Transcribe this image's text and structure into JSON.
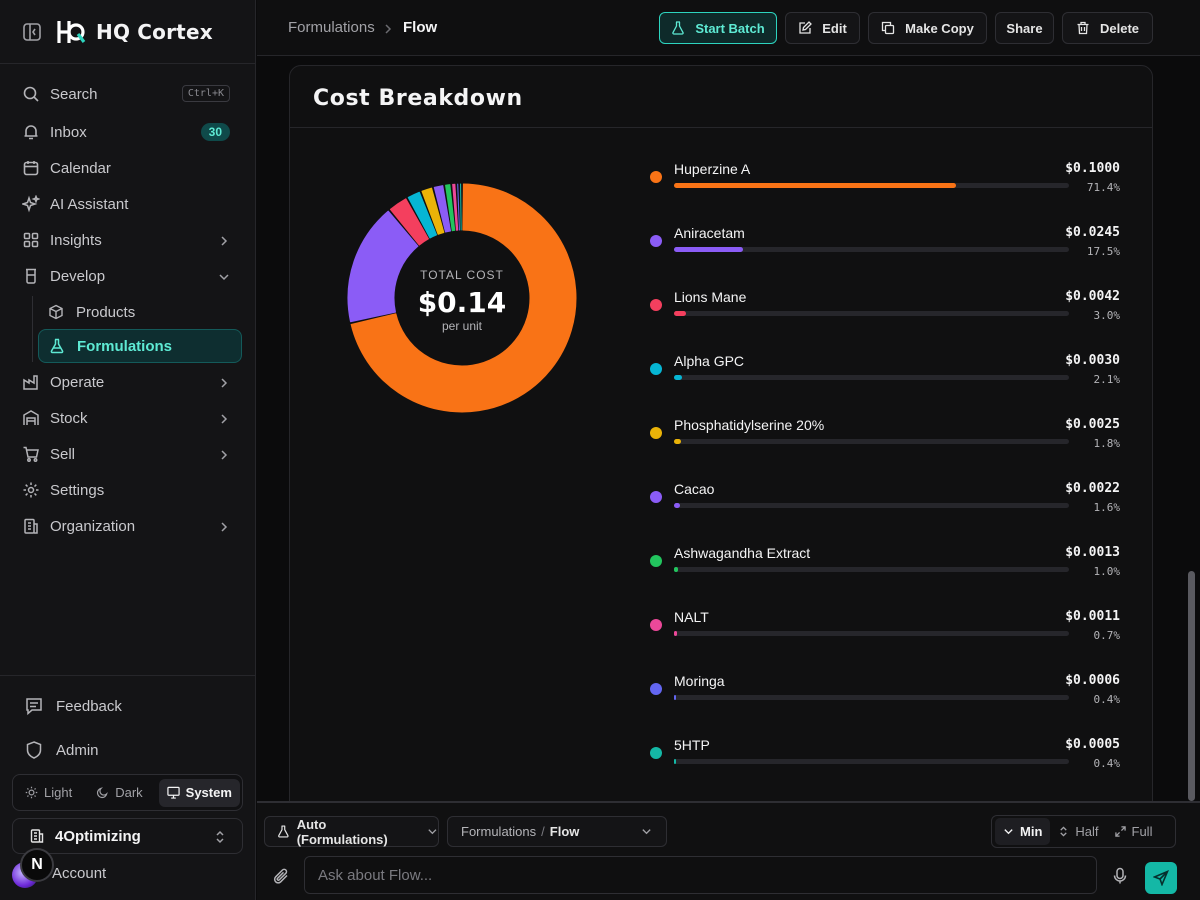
{
  "brand": {
    "name": "HQ Cortex"
  },
  "nav": {
    "search": {
      "label": "Search",
      "shortcut": "Ctrl+K"
    },
    "inbox": {
      "label": "Inbox",
      "count": "30"
    },
    "calendar": "Calendar",
    "ai_assistant": "AI Assistant",
    "insights": "Insights",
    "develop": "Develop",
    "develop_items": {
      "products": "Products",
      "formulations": "Formulations"
    },
    "operate": "Operate",
    "stock": "Stock",
    "sell": "Sell",
    "settings": "Settings",
    "organization": "Organization"
  },
  "sidebar_bottom": {
    "feedback": "Feedback",
    "admin": "Admin",
    "theme": {
      "light": "Light",
      "dark": "Dark",
      "system": "System",
      "selected": "System"
    },
    "org": "4Optimizing",
    "account": "Account",
    "account_badge": "N"
  },
  "header": {
    "breadcrumb_root": "Formulations",
    "breadcrumb_current": "Flow",
    "buttons": {
      "start_batch": "Start Batch",
      "edit": "Edit",
      "make_copy": "Make Copy",
      "share": "Share",
      "delete": "Delete"
    }
  },
  "cost_breakdown": {
    "title": "Cost Breakdown",
    "total_label": "TOTAL COST",
    "total_value": "$0.14",
    "total_unit": "per unit",
    "items": [
      {
        "name": "Huperzine A",
        "amount": "$0.1000",
        "percent": "71.4%",
        "share": 71.4,
        "color": "#f97316"
      },
      {
        "name": "Aniracetam",
        "amount": "$0.0245",
        "percent": "17.5%",
        "share": 17.5,
        "color": "#8b5cf6"
      },
      {
        "name": "Lions Mane",
        "amount": "$0.0042",
        "percent": "3.0%",
        "share": 3.0,
        "color": "#f43f5e"
      },
      {
        "name": "Alpha GPC",
        "amount": "$0.0030",
        "percent": "2.1%",
        "share": 2.1,
        "color": "#06b6d4"
      },
      {
        "name": "Phosphatidylserine 20%",
        "amount": "$0.0025",
        "percent": "1.8%",
        "share": 1.8,
        "color": "#eab308"
      },
      {
        "name": "Cacao",
        "amount": "$0.0022",
        "percent": "1.6%",
        "share": 1.6,
        "color": "#8b5cf6"
      },
      {
        "name": "Ashwagandha Extract",
        "amount": "$0.0013",
        "percent": "1.0%",
        "share": 1.0,
        "color": "#22c55e"
      },
      {
        "name": "NALT",
        "amount": "$0.0011",
        "percent": "0.7%",
        "share": 0.7,
        "color": "#ec4899"
      },
      {
        "name": "Moringa",
        "amount": "$0.0006",
        "percent": "0.4%",
        "share": 0.4,
        "color": "#6366f1"
      },
      {
        "name": "5HTP",
        "amount": "$0.0005",
        "percent": "0.4%",
        "share": 0.4,
        "color": "#14b8a6"
      }
    ]
  },
  "chat": {
    "agent": "Auto (Formulations)",
    "context_root": "Formulations",
    "context_sep": "/",
    "context_current": "Flow",
    "modes": {
      "min": "Min",
      "half": "Half",
      "full": "Full",
      "selected": "Min"
    },
    "placeholder": "Ask about Flow..."
  },
  "colors": {
    "accent": "#2dd4bf",
    "background": "#0b0b0c",
    "sidebar": "#141416"
  },
  "icons": [
    "sidebar-toggle-icon",
    "search-icon",
    "bell-icon",
    "calendar-icon",
    "sparkles-icon",
    "grid-icon",
    "beaker-icon",
    "box-icon",
    "flask-icon",
    "factory-icon",
    "warehouse-icon",
    "cart-icon",
    "gear-icon",
    "building-icon",
    "chevron-right-icon",
    "chevron-down-icon",
    "message-icon",
    "shield-icon",
    "sun-icon",
    "moon-icon",
    "monitor-icon",
    "edit-icon",
    "copy-icon",
    "trash-icon",
    "paperclip-icon",
    "mic-icon",
    "send-icon"
  ]
}
